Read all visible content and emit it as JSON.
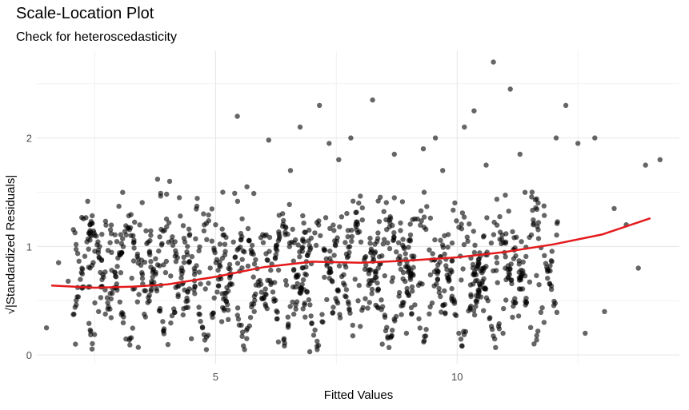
{
  "chart_data": {
    "type": "scatter",
    "title": "Scale-Location Plot",
    "subtitle": "Check for heteroscedasticity",
    "xlabel": "Fitted Values",
    "ylabel": "√|Standardized Residuals|",
    "xlim": [
      1.3,
      14.6
    ],
    "ylim": [
      -0.08,
      2.8
    ],
    "x_ticks": [
      5,
      10
    ],
    "x_tick_labels": [
      "5",
      "10"
    ],
    "y_ticks": [
      0,
      1,
      2
    ],
    "y_tick_labels": [
      "0",
      "1",
      "2"
    ],
    "grid": true,
    "point_color": "#000000",
    "point_opacity": 0.6,
    "smooth_color": "#e41a1c",
    "points": [
      [
        1.5,
        0.25
      ],
      [
        1.75,
        0.85
      ],
      [
        1.95,
        0.68
      ],
      [
        2.1,
        0.1
      ],
      [
        2.5,
        0.48
      ],
      [
        2.6,
        1.0
      ],
      [
        2.85,
        0.78
      ],
      [
        3.0,
        1.37
      ],
      [
        3.25,
        1.1
      ],
      [
        3.4,
        0.07
      ],
      [
        3.55,
        0.35
      ],
      [
        3.8,
        1.62
      ],
      [
        4.05,
        1.6
      ],
      [
        4.25,
        1.45
      ],
      [
        4.5,
        0.15
      ],
      [
        4.75,
        1.3
      ],
      [
        5.0,
        1.2
      ],
      [
        5.15,
        1.5
      ],
      [
        5.45,
        2.2
      ],
      [
        5.65,
        1.55
      ],
      [
        5.8,
        0.4
      ],
      [
        6.1,
        1.98
      ],
      [
        6.3,
        0.12
      ],
      [
        6.55,
        1.7
      ],
      [
        6.75,
        2.1
      ],
      [
        6.95,
        0.03
      ],
      [
        7.15,
        2.3
      ],
      [
        7.35,
        1.95
      ],
      [
        7.55,
        1.8
      ],
      [
        7.8,
        2.0
      ],
      [
        7.95,
        0.5
      ],
      [
        8.25,
        2.35
      ],
      [
        8.45,
        0.1
      ],
      [
        8.7,
        1.85
      ],
      [
        8.95,
        0.2
      ],
      [
        9.3,
        1.9
      ],
      [
        9.55,
        2.0
      ],
      [
        9.7,
        1.7
      ],
      [
        9.9,
        0.5
      ],
      [
        10.15,
        2.1
      ],
      [
        10.35,
        2.25
      ],
      [
        10.6,
        1.75
      ],
      [
        10.75,
        2.7
      ],
      [
        10.95,
        0.2
      ],
      [
        11.1,
        2.45
      ],
      [
        11.3,
        1.85
      ],
      [
        11.55,
        1.5
      ],
      [
        11.8,
        0.3
      ],
      [
        12.05,
        2.0
      ],
      [
        12.25,
        2.3
      ],
      [
        12.5,
        1.95
      ],
      [
        12.65,
        0.2
      ],
      [
        12.85,
        2.0
      ],
      [
        13.05,
        0.4
      ],
      [
        13.25,
        1.35
      ],
      [
        13.5,
        1.2
      ],
      [
        13.75,
        0.8
      ],
      [
        13.9,
        1.75
      ],
      [
        14.2,
        1.8
      ]
    ],
    "fan_points": {
      "x_ranges": [
        [
          2.2,
          2.7
        ],
        [
          2.9,
          3.5
        ],
        [
          3.7,
          4.3
        ],
        [
          4.5,
          5.1
        ],
        [
          5.3,
          5.9
        ],
        [
          6.1,
          6.7
        ],
        [
          6.8,
          7.4
        ],
        [
          7.6,
          8.2
        ],
        [
          8.3,
          8.9
        ],
        [
          9.0,
          9.6
        ],
        [
          9.8,
          10.4
        ],
        [
          10.5,
          11.1
        ],
        [
          11.3,
          11.9
        ]
      ],
      "y_range": [
        0.05,
        1.45
      ]
    },
    "smooth_line": {
      "x": [
        1.6,
        2.5,
        3.3,
        4.0,
        5.0,
        6.0,
        7.0,
        8.0,
        9.0,
        10.0,
        11.0,
        12.0,
        13.0,
        14.0
      ],
      "y": [
        0.64,
        0.62,
        0.63,
        0.65,
        0.72,
        0.81,
        0.86,
        0.85,
        0.87,
        0.9,
        0.95,
        1.02,
        1.11,
        1.26
      ]
    }
  }
}
